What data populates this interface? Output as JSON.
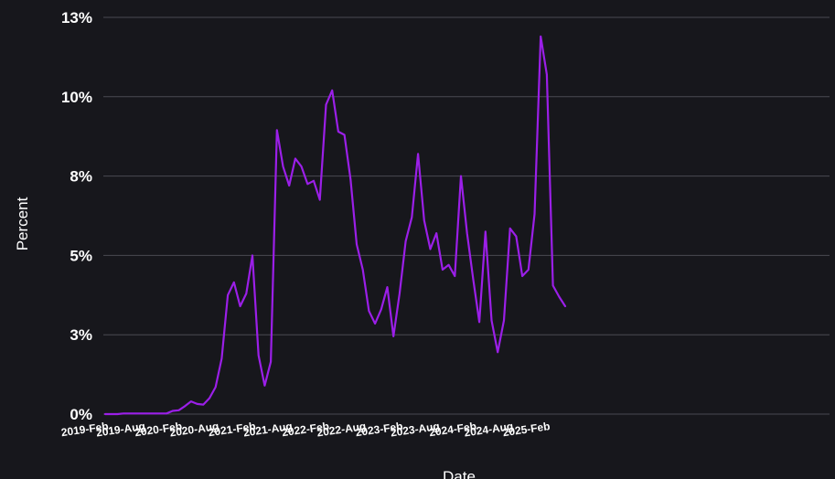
{
  "chart_data": {
    "type": "line",
    "xlabel": "Date",
    "ylabel": "Percent",
    "ylim": [
      0,
      12.5
    ],
    "y_ticks": [
      {
        "value": 0,
        "label": "0%"
      },
      {
        "value": 2.5,
        "label": "3%"
      },
      {
        "value": 5,
        "label": "5%"
      },
      {
        "value": 7.5,
        "label": "8%"
      },
      {
        "value": 10,
        "label": "10%"
      },
      {
        "value": 12.5,
        "label": "13%"
      }
    ],
    "x_ticks": [
      "2019-Feb",
      "2019-Aug",
      "2020-Feb",
      "2020-Aug",
      "2021-Feb",
      "2021-Aug",
      "2022-Feb",
      "2022-Aug",
      "2023-Feb",
      "2023-Aug",
      "2024-Feb",
      "2024-Aug",
      "2025-Feb"
    ],
    "grid": true,
    "legend": "none",
    "colors": {
      "background": "#17171c",
      "line": "#9b1fe8",
      "grid": "#4a4a52",
      "text": "#ffffff"
    },
    "x": [
      "2019-Feb",
      "2019-Mar",
      "2019-Apr",
      "2019-May",
      "2019-Jun",
      "2019-Jul",
      "2019-Aug",
      "2019-Sep",
      "2019-Oct",
      "2019-Nov",
      "2019-Dec",
      "2020-Jan",
      "2020-Feb",
      "2020-Mar",
      "2020-Apr",
      "2020-May",
      "2020-Jun",
      "2020-Jul",
      "2020-Aug",
      "2020-Sep",
      "2020-Oct",
      "2020-Nov",
      "2020-Dec",
      "2021-Jan",
      "2021-Feb",
      "2021-Mar",
      "2021-Apr",
      "2021-May",
      "2021-Jun",
      "2021-Jul",
      "2021-Aug",
      "2021-Sep",
      "2021-Oct",
      "2021-Nov",
      "2021-Dec",
      "2022-Jan",
      "2022-Feb",
      "2022-Mar",
      "2022-Apr",
      "2022-May",
      "2022-Jun",
      "2022-Jul",
      "2022-Aug",
      "2022-Sep",
      "2022-Oct",
      "2022-Nov",
      "2022-Dec",
      "2023-Jan",
      "2023-Feb",
      "2023-Mar",
      "2023-Apr",
      "2023-May",
      "2023-Jun",
      "2023-Jul",
      "2023-Aug",
      "2023-Sep",
      "2023-Oct",
      "2023-Nov",
      "2023-Dec",
      "2024-Jan",
      "2024-Feb",
      "2024-Mar",
      "2024-Apr",
      "2024-May",
      "2024-Jun",
      "2024-Jul",
      "2024-Aug",
      "2024-Sep",
      "2024-Oct",
      "2024-Nov",
      "2024-Dec",
      "2025-Jan",
      "2025-Feb",
      "2025-Mar",
      "2025-Apr",
      "2025-May"
    ],
    "series": [
      {
        "values": [
          0,
          0,
          0,
          0.02,
          0.02,
          0.02,
          0.02,
          0.02,
          0.02,
          0.02,
          0.02,
          0.1,
          0.12,
          0.25,
          0.4,
          0.32,
          0.3,
          0.5,
          0.85,
          1.75,
          3.75,
          4.15,
          3.4,
          3.8,
          5.0,
          1.85,
          0.9,
          1.65,
          8.95,
          7.8,
          7.2,
          8.05,
          7.8,
          7.25,
          7.35,
          6.75,
          9.75,
          10.2,
          8.9,
          8.8,
          7.4,
          5.35,
          4.55,
          3.25,
          2.85,
          3.3,
          4.0,
          2.45,
          3.8,
          5.45,
          6.2,
          8.2,
          6.1,
          5.2,
          5.7,
          4.55,
          4.7,
          4.35,
          7.5,
          5.7,
          4.25,
          2.9,
          5.75,
          2.95,
          1.95,
          2.95,
          5.85,
          5.6,
          4.35,
          4.55,
          6.3,
          11.9,
          10.7,
          4.05,
          3.7,
          3.4
        ]
      }
    ]
  }
}
